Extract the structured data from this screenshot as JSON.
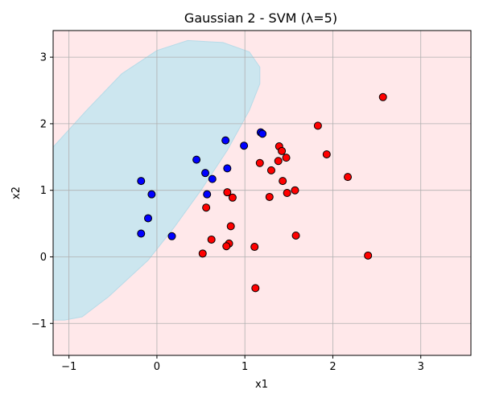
{
  "chart_data": {
    "type": "scatter",
    "title": "Gaussian 2 - SVM (λ=5)",
    "xlabel": "x1",
    "ylabel": "x2",
    "xlim": [
      -1.18,
      3.57
    ],
    "ylim": [
      -1.48,
      3.4
    ],
    "xticks": [
      -1,
      0,
      1,
      2,
      3
    ],
    "yticks": [
      -1,
      0,
      1,
      2,
      3
    ],
    "xtick_labels": [
      "−1",
      "0",
      "1",
      "2",
      "3"
    ],
    "ytick_labels": [
      "−1",
      "0",
      "1",
      "2",
      "3"
    ],
    "grid": true,
    "background_region": {
      "class": "red",
      "color": "#ffe8ea"
    },
    "decision_region": {
      "class": "blue",
      "color": "#cce6ef",
      "boundary": [
        [
          -1.18,
          1.65
        ],
        [
          -0.8,
          2.2
        ],
        [
          -0.4,
          2.75
        ],
        [
          0.0,
          3.1
        ],
        [
          0.35,
          3.25
        ],
        [
          0.75,
          3.22
        ],
        [
          1.05,
          3.08
        ],
        [
          1.17,
          2.85
        ],
        [
          1.17,
          2.6
        ],
        [
          1.05,
          2.2
        ],
        [
          0.8,
          1.6
        ],
        [
          0.5,
          1.0
        ],
        [
          0.2,
          0.45
        ],
        [
          -0.1,
          -0.05
        ],
        [
          -0.55,
          -0.6
        ],
        [
          -0.85,
          -0.9
        ],
        [
          -1.05,
          -0.95
        ],
        [
          -1.18,
          -0.95
        ]
      ]
    },
    "series": [
      {
        "color": "#0000ff",
        "points": [
          [
            -0.18,
            1.14
          ],
          [
            -0.06,
            0.94
          ],
          [
            -0.1,
            0.58
          ],
          [
            -0.18,
            0.35
          ],
          [
            0.17,
            0.31
          ],
          [
            0.45,
            1.46
          ],
          [
            0.55,
            1.26
          ],
          [
            0.63,
            1.17
          ],
          [
            0.57,
            0.94
          ],
          [
            0.78,
            1.75
          ],
          [
            0.8,
            1.33
          ],
          [
            0.99,
            1.67
          ],
          [
            1.18,
            1.87
          ],
          [
            1.2,
            1.85
          ]
        ]
      },
      {
        "color": "#ff0000",
        "points": [
          [
            1.17,
            1.41
          ],
          [
            1.3,
            1.3
          ],
          [
            1.39,
            1.66
          ],
          [
            1.42,
            1.59
          ],
          [
            1.47,
            1.49
          ],
          [
            1.38,
            1.44
          ],
          [
            1.43,
            1.14
          ],
          [
            1.48,
            0.96
          ],
          [
            1.57,
            1.0
          ],
          [
            1.28,
            0.9
          ],
          [
            0.8,
            0.97
          ],
          [
            0.86,
            0.89
          ],
          [
            0.56,
            0.74
          ],
          [
            0.84,
            0.46
          ],
          [
            0.62,
            0.26
          ],
          [
            0.82,
            0.2
          ],
          [
            0.79,
            0.16
          ],
          [
            0.52,
            0.05
          ],
          [
            1.11,
            0.15
          ],
          [
            1.58,
            0.32
          ],
          [
            1.83,
            1.97
          ],
          [
            1.93,
            1.54
          ],
          [
            2.17,
            1.2
          ],
          [
            2.57,
            2.4
          ],
          [
            2.4,
            0.02
          ],
          [
            1.12,
            -0.47
          ]
        ]
      }
    ]
  }
}
